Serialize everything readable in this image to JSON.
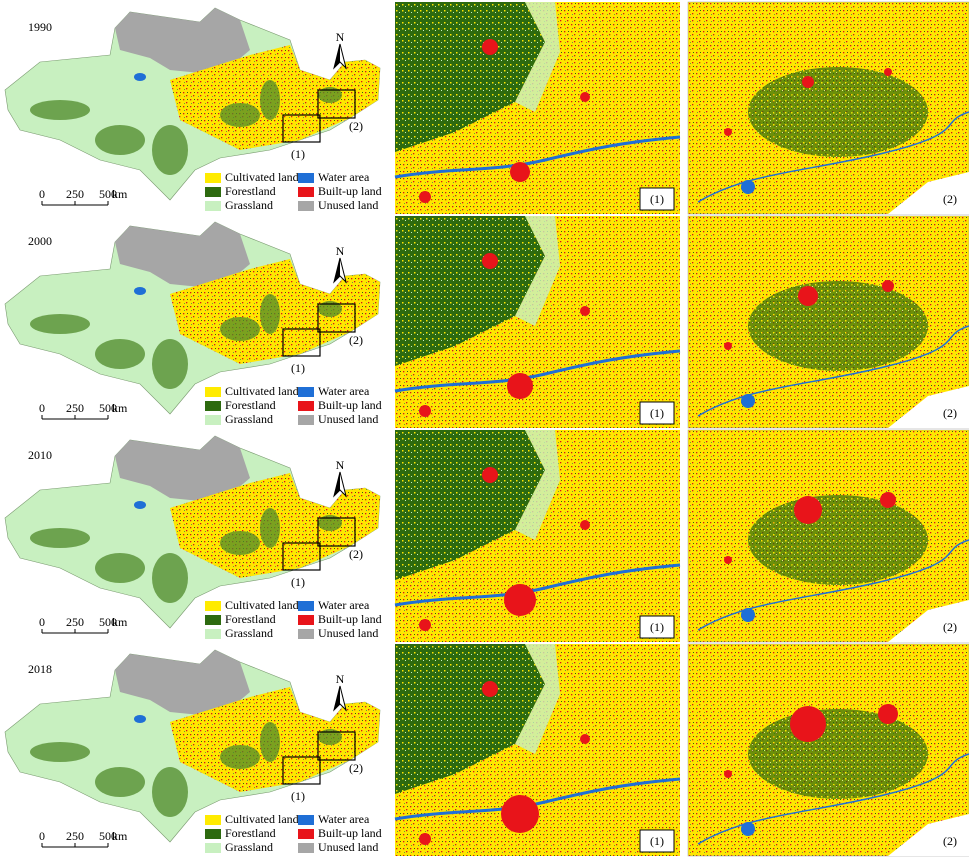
{
  "panels": [
    {
      "year": "1990",
      "box_labels": [
        "(1)",
        "(2)"
      ],
      "inset_labels": [
        "(1)",
        "(2)"
      ]
    },
    {
      "year": "2000",
      "box_labels": [
        "(1)",
        "(2)"
      ],
      "inset_labels": [
        "(1)",
        "(2)"
      ]
    },
    {
      "year": "2010",
      "box_labels": [
        "(1)",
        "(2)"
      ],
      "inset_labels": [
        "(1)",
        "(2)"
      ]
    },
    {
      "year": "2018",
      "box_labels": [
        "(1)",
        "(2)"
      ],
      "inset_labels": [
        "(1)",
        "(2)"
      ]
    }
  ],
  "legend": [
    {
      "label": "Cultivated land",
      "color": "#ffeb00"
    },
    {
      "label": "Water area",
      "color": "#1f6fd6"
    },
    {
      "label": "Forestland",
      "color": "#2d6a0f"
    },
    {
      "label": "Built-up land",
      "color": "#e8141a"
    },
    {
      "label": "Grassland",
      "color": "#c8f0c0"
    },
    {
      "label": "Unused land",
      "color": "#a6a6a6"
    }
  ],
  "north": "N",
  "scale": {
    "ticks": [
      0,
      250,
      500
    ],
    "unit": "km"
  }
}
